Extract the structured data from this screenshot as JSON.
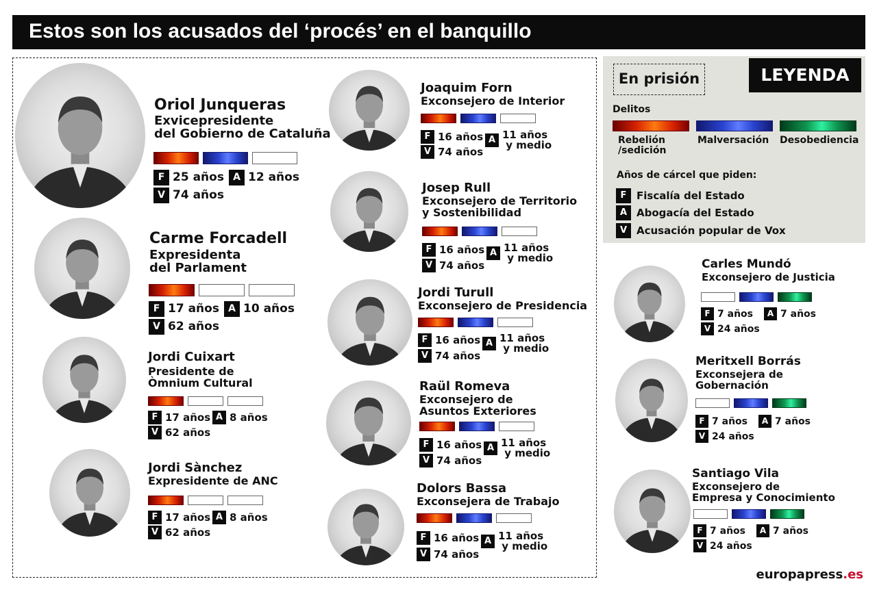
{
  "title": "Estos son los acusados del ‘procés’ en el banquillo",
  "legend": {
    "title": "LEYENDA",
    "in_prison": "En prisión",
    "crimes_heading": "Delitos",
    "crimes": [
      {
        "label": "Rebelión\n/sedición",
        "color": "#d42000"
      },
      {
        "label": "Malversación",
        "color": "#2a44d0"
      },
      {
        "label": "Desobediencia",
        "color": "#0f9650"
      }
    ],
    "years_heading": "Años de cárcel que piden:",
    "keys": [
      {
        "letter": "F",
        "label": "Fiscalía del Estado"
      },
      {
        "letter": "A",
        "label": "Abogacía del Estado"
      },
      {
        "letter": "V",
        "label": "Acusación popular de Vox"
      }
    ]
  },
  "people": [
    {
      "name": "Oriol Junqueras",
      "role": "Exvicepresidente\ndel Gobierno de Cataluña",
      "crimes": [
        "rebelion",
        "malversacion",
        "none"
      ],
      "F": "25 años",
      "A": "12 años",
      "V": "74 años",
      "in_prison": true
    },
    {
      "name": "Carme Forcadell",
      "role": "Expresidenta\ndel Parlament",
      "crimes": [
        "rebelion",
        "none",
        "none"
      ],
      "F": "17 años",
      "A": "10 años",
      "V": "62 años",
      "in_prison": true
    },
    {
      "name": "Jordi Cuixart",
      "role": "Presidente de\nÒmnium Cultural",
      "crimes": [
        "rebelion",
        "none",
        "none"
      ],
      "F": "17 años",
      "A": "8 años",
      "V": "62 años",
      "in_prison": true
    },
    {
      "name": "Jordi Sànchez",
      "role": "Expresidente de ANC",
      "crimes": [
        "rebelion",
        "none",
        "none"
      ],
      "F": "17 años",
      "A": "8 años",
      "V": "62 años",
      "in_prison": true
    },
    {
      "name": "Joaquim Forn",
      "role": "Exconsejero de Interior",
      "crimes": [
        "rebelion",
        "malversacion",
        "none"
      ],
      "F": "16 años",
      "A": "11 años\n y medio",
      "V": "74 años",
      "in_prison": true
    },
    {
      "name": "Josep Rull",
      "role": "Exconsejero de Territorio\ny Sostenibilidad",
      "crimes": [
        "rebelion",
        "malversacion",
        "none"
      ],
      "F": "16 años",
      "A": "11 años\n y medio",
      "V": "74 años",
      "in_prison": true
    },
    {
      "name": "Jordi Turull",
      "role": "Exconsejero de Presidencia",
      "crimes": [
        "rebelion",
        "malversacion",
        "none"
      ],
      "F": "16 años",
      "A": "11 años\n y medio",
      "V": "74 años",
      "in_prison": true
    },
    {
      "name": "Raül Romeva",
      "role": "Exconsejero de\nAsuntos Exteriores",
      "crimes": [
        "rebelion",
        "malversacion",
        "none"
      ],
      "F": "16 años",
      "A": "11 años\n y medio",
      "V": "74 años",
      "in_prison": true
    },
    {
      "name": "Dolors Bassa",
      "role": "Exconsejera de Trabajo",
      "crimes": [
        "rebelion",
        "malversacion",
        "none"
      ],
      "F": "16 años",
      "A": "11 años\n y medio",
      "V": "74 años",
      "in_prison": true
    },
    {
      "name": "Carles Mundó",
      "role": "Exconsejero de Justicia",
      "crimes": [
        "none",
        "malversacion",
        "desobediencia"
      ],
      "F": "7 años",
      "A": "7 años",
      "V": "24 años",
      "in_prison": false
    },
    {
      "name": "Meritxell Borrás",
      "role": "Exconsejera de\nGobernación",
      "crimes": [
        "none",
        "malversacion",
        "desobediencia"
      ],
      "F": "7 años",
      "A": "7 años",
      "V": "24 años",
      "in_prison": false
    },
    {
      "name": "Santiago Vila",
      "role": "Exconsejero de\nEmpresa y Conocimiento",
      "crimes": [
        "none",
        "malversacion",
        "desobediencia"
      ],
      "F": "7 años",
      "A": "7 años",
      "V": "24 años",
      "in_prison": false
    }
  ],
  "brand": {
    "main": "europapress",
    "suffix": ".es"
  }
}
